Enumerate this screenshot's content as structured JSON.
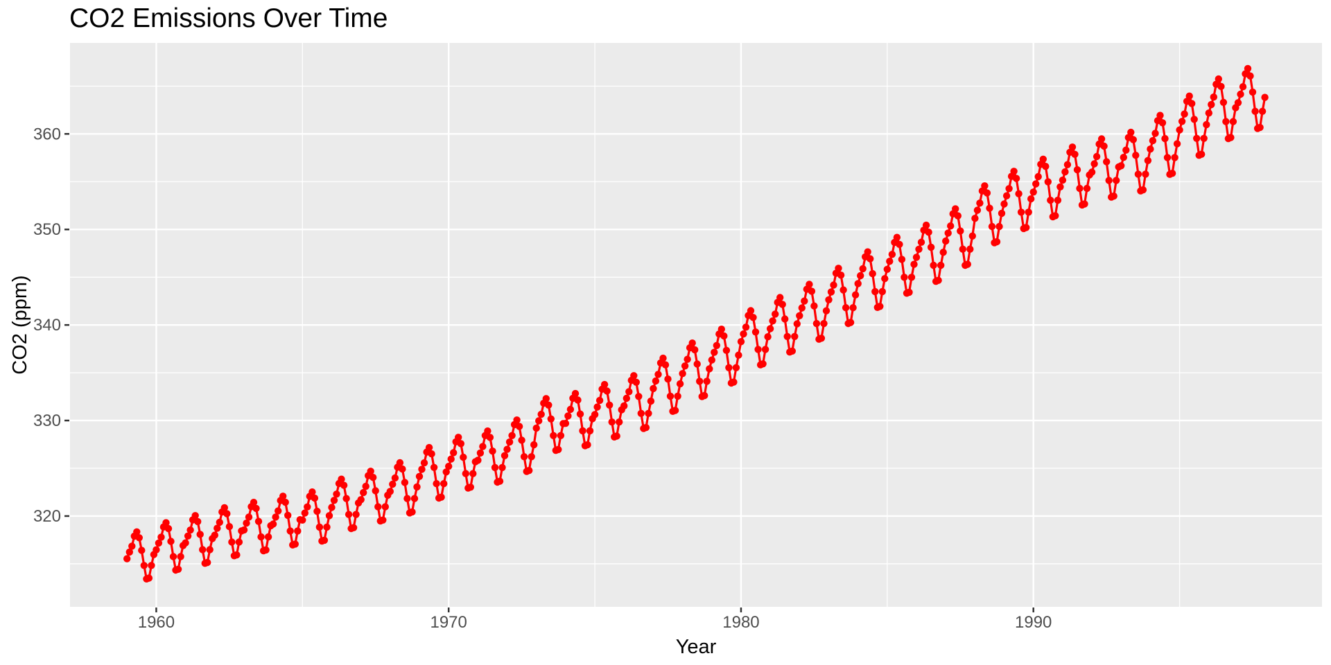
{
  "chart_data": {
    "type": "line",
    "title": "CO2 Emissions Over Time",
    "xlabel": "Year",
    "ylabel": "CO2 (ppm)",
    "x_ticks": [
      1960,
      1970,
      1980,
      1990
    ],
    "x_minor_ticks": [
      1965,
      1975,
      1985,
      1995
    ],
    "y_ticks": [
      320,
      330,
      340,
      350,
      360
    ],
    "y_minor_ticks": [
      315,
      325,
      335,
      345,
      355,
      365
    ],
    "xlim": [
      1957.05,
      1999.87
    ],
    "ylim": [
      310.5,
      369.52
    ],
    "grid": "on",
    "legend": "none",
    "theme": {
      "panel_bg": "#EBEBEB",
      "grid_color": "#FFFFFF",
      "series_color": "#FF0000",
      "tick_label_color": "#4D4D4D",
      "tick_mark_color": "#333333",
      "title_color": "#000000"
    },
    "series": [
      {
        "name": "co2",
        "start_year": 1959,
        "end_year": 1997,
        "frequency": "monthly",
        "n_points": 468,
        "annual_means": [
          315.97,
          316.91,
          317.64,
          318.45,
          318.99,
          319.62,
          320.04,
          321.37,
          322.18,
          323.05,
          324.62,
          325.68,
          326.32,
          327.46,
          329.68,
          330.19,
          331.12,
          332.03,
          333.84,
          335.41,
          336.84,
          338.76,
          340.12,
          341.48,
          343.15,
          344.85,
          346.35,
          347.61,
          349.31,
          351.69,
          353.2,
          354.45,
          355.7,
          356.54,
          357.21,
          358.96,
          360.97,
          362.74,
          363.82
        ],
        "seasonal_offsets": [
          -0.5,
          0.3,
          1.0,
          2.2,
          2.7,
          2.0,
          0.5,
          -1.3,
          -2.9,
          -2.8,
          -1.3,
          0.0
        ],
        "seasonal_amplitude_scale": {
          "start": 0.88,
          "end": 1.12
        },
        "value_range_observed": [
          313.2,
          366.8
        ]
      }
    ]
  }
}
